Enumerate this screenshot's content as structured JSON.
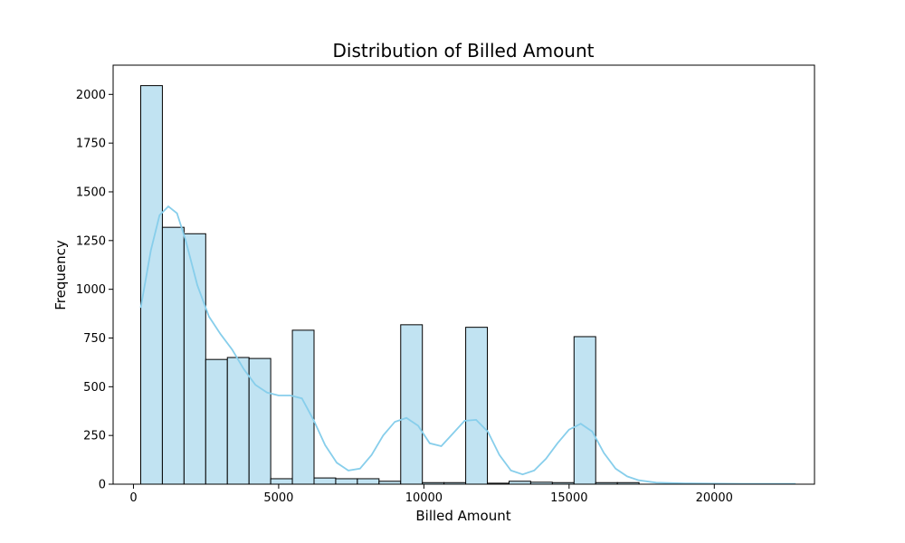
{
  "chart_data": {
    "type": "bar",
    "title": "Distribution of Billed Amount",
    "xlabel": "Billed Amount",
    "ylabel": "Frequency",
    "xlim": [
      -700,
      23450
    ],
    "ylim": [
      0,
      2150
    ],
    "x_ticks": [
      0,
      5000,
      10000,
      15000,
      20000
    ],
    "y_ticks": [
      0,
      250,
      500,
      750,
      1000,
      1250,
      1500,
      1750,
      2000
    ],
    "bar_color": "#c1e3f2",
    "edge_color": "#000000",
    "kde_color": "#87ceeb",
    "grid": false,
    "bins": [
      {
        "x0": 250,
        "x1": 996,
        "count": 2045
      },
      {
        "x0": 996,
        "x1": 1742,
        "count": 1318
      },
      {
        "x0": 1742,
        "x1": 2488,
        "count": 1285
      },
      {
        "x0": 2488,
        "x1": 3234,
        "count": 640
      },
      {
        "x0": 3234,
        "x1": 3980,
        "count": 650
      },
      {
        "x0": 3980,
        "x1": 4726,
        "count": 645
      },
      {
        "x0": 4726,
        "x1": 5472,
        "count": 28
      },
      {
        "x0": 5472,
        "x1": 6218,
        "count": 790
      },
      {
        "x0": 6218,
        "x1": 6964,
        "count": 32
      },
      {
        "x0": 6964,
        "x1": 7710,
        "count": 28
      },
      {
        "x0": 7710,
        "x1": 8456,
        "count": 28
      },
      {
        "x0": 8456,
        "x1": 9202,
        "count": 15
      },
      {
        "x0": 9202,
        "x1": 9948,
        "count": 818
      },
      {
        "x0": 9948,
        "x1": 10694,
        "count": 8
      },
      {
        "x0": 10694,
        "x1": 11440,
        "count": 8
      },
      {
        "x0": 11440,
        "x1": 12186,
        "count": 805
      },
      {
        "x0": 12186,
        "x1": 12932,
        "count": 5
      },
      {
        "x0": 12932,
        "x1": 13678,
        "count": 15
      },
      {
        "x0": 13678,
        "x1": 14424,
        "count": 10
      },
      {
        "x0": 14424,
        "x1": 15170,
        "count": 8
      },
      {
        "x0": 15170,
        "x1": 15916,
        "count": 757
      },
      {
        "x0": 15916,
        "x1": 16662,
        "count": 8
      },
      {
        "x0": 16662,
        "x1": 17408,
        "count": 8
      }
    ],
    "kde": {
      "x": [
        250,
        600,
        900,
        1200,
        1500,
        1800,
        2200,
        2600,
        3000,
        3400,
        3800,
        4200,
        4600,
        5000,
        5400,
        5800,
        6200,
        6600,
        7000,
        7400,
        7800,
        8200,
        8600,
        9000,
        9400,
        9800,
        10200,
        10600,
        11000,
        11400,
        11800,
        12200,
        12600,
        13000,
        13400,
        13800,
        14200,
        14600,
        15000,
        15400,
        15800,
        16200,
        16600,
        17000,
        17400,
        18000,
        19000,
        20000,
        21000,
        22000,
        22800
      ],
      "y": [
        905,
        1200,
        1380,
        1425,
        1390,
        1250,
        1020,
        860,
        770,
        690,
        590,
        510,
        470,
        455,
        455,
        440,
        330,
        200,
        110,
        70,
        80,
        150,
        250,
        320,
        340,
        300,
        210,
        195,
        260,
        325,
        330,
        270,
        150,
        70,
        50,
        70,
        130,
        210,
        280,
        310,
        270,
        160,
        80,
        40,
        20,
        8,
        4,
        3,
        2,
        2,
        2
      ]
    }
  }
}
